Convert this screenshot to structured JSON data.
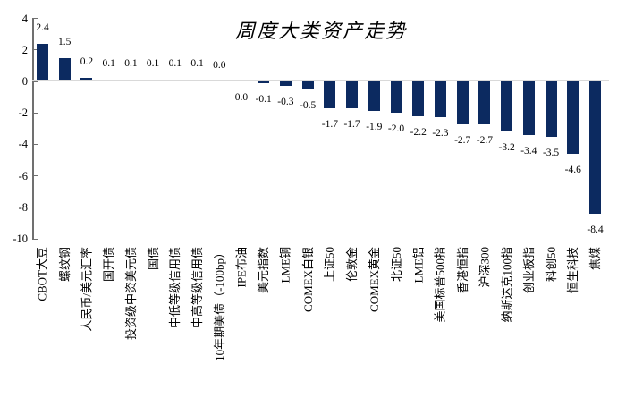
{
  "chart_data": {
    "type": "bar",
    "title": "周度大类资产走势",
    "categories": [
      "CBOT大豆",
      "螺纹钢",
      "人民币/美元汇率",
      "国开债",
      "投资级中资美元债",
      "国债",
      "中低等级信用债",
      "中高等级信用债",
      "10年期美债（-100bp）",
      "IPE布油",
      "美元指数",
      "LME铜",
      "COMEX白银",
      "上证50",
      "伦敦金",
      "COMEX黄金",
      "北证50",
      "LME铝",
      "美国标普500指",
      "香港恒指",
      "沪深300",
      "纳斯达克100指",
      "创业板指",
      "科创50",
      "恒生科技",
      "焦煤"
    ],
    "values": [
      2.4,
      1.5,
      0.2,
      0.1,
      0.1,
      0.1,
      0.1,
      0.1,
      0.0,
      0.0,
      -0.1,
      -0.3,
      -0.5,
      -1.7,
      -1.7,
      -1.9,
      -2.0,
      -2.2,
      -2.3,
      -2.7,
      -2.7,
      -3.2,
      -3.4,
      -3.5,
      -4.6,
      -8.4
    ],
    "value_label_decimals": 1,
    "xlabel": "",
    "ylabel": "",
    "ylim": [
      -10,
      4
    ],
    "yticks": [
      4,
      2,
      0,
      -2,
      -4,
      -6,
      -8,
      -10
    ],
    "grid": false,
    "legend_position": "none",
    "bar_color": "#0c2a60",
    "zero_line_color": "#d9d9d9",
    "axis_color": "#707070",
    "text_color": "#000000"
  }
}
